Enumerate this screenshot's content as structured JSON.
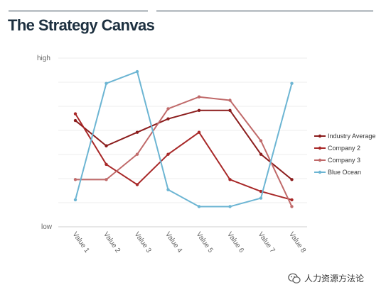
{
  "title": "The Strategy Canvas",
  "watermark": {
    "text": "人力资源方法论",
    "icon": "wechat-icon"
  },
  "chart_data": {
    "type": "line",
    "title": "The Strategy Canvas",
    "y_axis": {
      "top_label": "high",
      "bottom_label": "low",
      "ylim": [
        0,
        10
      ]
    },
    "grid": true,
    "legend": "right",
    "categories": [
      "Value 1",
      "Value 2",
      "Value 3",
      "Value 4",
      "Value 5",
      "Value 6",
      "Value 7",
      "Value 8"
    ],
    "series": [
      {
        "name": "Industry Average",
        "color": "#8b1c1c",
        "values": [
          6.3,
          4.8,
          5.6,
          6.4,
          6.9,
          6.9,
          4.3,
          2.8
        ]
      },
      {
        "name": "Company 2",
        "color": "#a82828",
        "values": [
          6.7,
          3.7,
          2.5,
          4.3,
          5.6,
          2.8,
          2.1,
          1.6
        ]
      },
      {
        "name": "Company 3",
        "color": "#c06a6a",
        "values": [
          2.8,
          2.8,
          4.3,
          7.0,
          7.7,
          7.5,
          5.1,
          1.2
        ]
      },
      {
        "name": "Blue Ocean",
        "color": "#6cb5d3",
        "values": [
          1.6,
          8.5,
          9.2,
          2.2,
          1.2,
          1.2,
          1.7,
          8.5
        ]
      }
    ]
  }
}
